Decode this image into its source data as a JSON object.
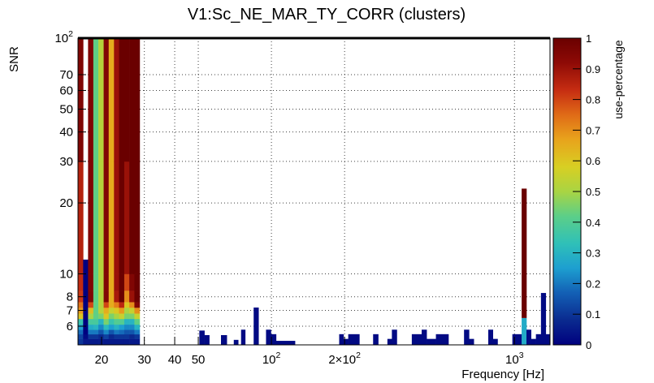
{
  "chart_data": {
    "type": "heatmap",
    "title": "V1:Sc_NE_MAR_TY_CORR (clusters)",
    "xlabel": "Frequency [Hz]",
    "ylabel": "SNR",
    "zlabel": "use-percentage",
    "x_scale": "log",
    "y_scale": "log",
    "xlim": [
      16,
      1400
    ],
    "ylim": [
      5,
      100
    ],
    "zlim": [
      0,
      1
    ],
    "grid": true,
    "x_ticks": [
      {
        "value": 20,
        "label": "20"
      },
      {
        "value": 30,
        "label": "30"
      },
      {
        "value": 40,
        "label": "40"
      },
      {
        "value": 50,
        "label": "50"
      },
      {
        "value": 100,
        "label": "10",
        "sup": "2"
      },
      {
        "value": 200,
        "label": "2×10",
        "sup": "2"
      },
      {
        "value": 1000,
        "label": "10",
        "sup": "3"
      }
    ],
    "y_ticks": [
      {
        "value": 6,
        "label": "6"
      },
      {
        "value": 7,
        "label": "7"
      },
      {
        "value": 8,
        "label": "8"
      },
      {
        "value": 10,
        "label": "10"
      },
      {
        "value": 20,
        "label": "20"
      },
      {
        "value": 30,
        "label": "30"
      },
      {
        "value": 40,
        "label": "40"
      },
      {
        "value": 50,
        "label": "50"
      },
      {
        "value": 60,
        "label": "60"
      },
      {
        "value": 70,
        "label": "70"
      },
      {
        "value": 100,
        "label": "10",
        "sup": "2"
      }
    ],
    "colorbar_ticks": [
      "0",
      "0.1",
      "0.2",
      "0.3",
      "0.4",
      "0.5",
      "0.6",
      "0.7",
      "0.8",
      "0.9",
      "1"
    ],
    "colorscale": [
      "#00007f",
      "#0a2a8f",
      "#1360b5",
      "#1d9fd0",
      "#2fc0b8",
      "#5ccf88",
      "#a9d443",
      "#d8cf23",
      "#e8a31c",
      "#e06b17",
      "#c62d12",
      "#8e0a06",
      "#6a0000"
    ],
    "x_bin_edges": [
      16,
      16.8,
      17.6,
      18.5,
      19.4,
      20.4,
      21.4,
      22.5,
      23.6,
      24.8,
      26.0,
      27.3,
      28.7
    ],
    "low_freq_columns": [
      {
        "snr_top": 100,
        "values": [
          0.1,
          0.12,
          0.18,
          0.25,
          0.35,
          0.6,
          0.68,
          0.74,
          0.82,
          0.84,
          0.86,
          0.95
        ]
      },
      {
        "snr_top": 11.5,
        "values": [
          0.05,
          0.02,
          0.0,
          0.0,
          0.0,
          0.0,
          0.0,
          0.0,
          0.0,
          0.0,
          0.0,
          0.0
        ]
      },
      {
        "snr_top": 100,
        "values": [
          0.05,
          0.1,
          0.2,
          0.28,
          0.38,
          0.5,
          0.62,
          0.8,
          0.95,
          0.95,
          0.95,
          0.95
        ]
      },
      {
        "snr_top": 100,
        "values": [
          0.05,
          0.1,
          0.2,
          0.3,
          0.38,
          0.42,
          0.42,
          0.42,
          0.42,
          0.42,
          0.42,
          0.42
        ]
      },
      {
        "snr_top": 100,
        "values": [
          0.05,
          0.08,
          0.15,
          0.22,
          0.3,
          0.45,
          0.52,
          0.52,
          0.52,
          0.52,
          0.52,
          0.52
        ]
      },
      {
        "snr_top": 100,
        "values": [
          0.05,
          0.12,
          0.22,
          0.32,
          0.45,
          0.6,
          0.65,
          0.8,
          0.95,
          0.95,
          0.95,
          0.95
        ]
      },
      {
        "snr_top": 100,
        "values": [
          0.05,
          0.08,
          0.15,
          0.25,
          0.35,
          0.45,
          0.55,
          0.65,
          0.65,
          0.65,
          0.65,
          0.65
        ]
      },
      {
        "snr_top": 100,
        "values": [
          0.05,
          0.1,
          0.2,
          0.3,
          0.4,
          0.5,
          0.6,
          0.72,
          0.88,
          0.9,
          0.9,
          0.9
        ]
      },
      {
        "snr_top": 100,
        "values": [
          0.05,
          0.1,
          0.18,
          0.25,
          0.4,
          0.55,
          0.68,
          0.85,
          1.0,
          1.0,
          1.0,
          1.0
        ]
      },
      {
        "snr_top": 100,
        "values": [
          0.05,
          0.1,
          0.15,
          0.22,
          0.3,
          0.45,
          0.5,
          0.6,
          0.7,
          0.8,
          0.9,
          1.0
        ]
      },
      {
        "snr_top": 100,
        "values": [
          0.05,
          0.08,
          0.15,
          0.22,
          0.3,
          0.45,
          0.55,
          0.7,
          0.9,
          0.95,
          1.0,
          1.0
        ]
      },
      {
        "snr_top": 100,
        "values": [
          0.05,
          0.1,
          0.2,
          0.3,
          0.42,
          0.55,
          0.7,
          0.95,
          1.0,
          1.0,
          1.0,
          1.0
        ]
      }
    ],
    "low_freq_snr_edges": [
      5,
      5.3,
      5.55,
      5.8,
      6.1,
      6.45,
      6.8,
      7.2,
      7.6,
      8.5,
      10,
      30,
      100
    ],
    "clusters": [
      {
        "f0": 50.5,
        "f1": 53.0,
        "snr_top": 5.75,
        "value": 0.02
      },
      {
        "f0": 53.0,
        "f1": 55.5,
        "snr_top": 5.5,
        "value": 0.02
      },
      {
        "f0": 62.0,
        "f1": 65.5,
        "snr_top": 5.5,
        "value": 0.02
      },
      {
        "f0": 70.0,
        "f1": 73.0,
        "snr_top": 5.25,
        "value": 0.02
      },
      {
        "f0": 75.0,
        "f1": 78.0,
        "snr_top": 5.8,
        "value": 0.02
      },
      {
        "f0": 84.5,
        "f1": 88.5,
        "snr_top": 7.2,
        "value": 0.02
      },
      {
        "f0": 95.0,
        "f1": 99.5,
        "snr_top": 5.8,
        "value": 0.02
      },
      {
        "f0": 99.5,
        "f1": 104.5,
        "snr_top": 5.55,
        "value": 0.02
      },
      {
        "f0": 104.5,
        "f1": 125.0,
        "snr_top": 5.2,
        "value": 0.02
      },
      {
        "f0": 190.0,
        "f1": 198.0,
        "snr_top": 5.55,
        "value": 0.02
      },
      {
        "f0": 198.0,
        "f1": 207.0,
        "snr_top": 5.3,
        "value": 0.02
      },
      {
        "f0": 207.0,
        "f1": 230.0,
        "snr_top": 5.55,
        "value": 0.02
      },
      {
        "f0": 262.0,
        "f1": 275.0,
        "snr_top": 5.55,
        "value": 0.02
      },
      {
        "f0": 300.0,
        "f1": 313.0,
        "snr_top": 5.3,
        "value": 0.02
      },
      {
        "f0": 313.0,
        "f1": 328.0,
        "snr_top": 5.8,
        "value": 0.02
      },
      {
        "f0": 378.0,
        "f1": 415.0,
        "snr_top": 5.55,
        "value": 0.02
      },
      {
        "f0": 415.0,
        "f1": 435.0,
        "snr_top": 5.8,
        "value": 0.02
      },
      {
        "f0": 435.0,
        "f1": 475.0,
        "snr_top": 5.3,
        "value": 0.02
      },
      {
        "f0": 475.0,
        "f1": 535.0,
        "snr_top": 5.55,
        "value": 0.02
      },
      {
        "f0": 620.0,
        "f1": 650.0,
        "snr_top": 5.8,
        "value": 0.02
      },
      {
        "f0": 650.0,
        "f1": 680.0,
        "snr_top": 5.3,
        "value": 0.02
      },
      {
        "f0": 780.0,
        "f1": 815.0,
        "snr_top": 5.8,
        "value": 0.02
      },
      {
        "f0": 815.0,
        "f1": 852.0,
        "snr_top": 5.3,
        "value": 0.02
      },
      {
        "f0": 980.0,
        "f1": 1070.0,
        "snr_top": 5.55,
        "value": 0.02
      },
      {
        "f0": 1070.0,
        "f1": 1120.0,
        "snr_top": 6.5,
        "value": 0.28
      },
      {
        "f0": 1070.0,
        "f1": 1120.0,
        "snr_top": 23.0,
        "value": 1.0,
        "snr_bottom": 6.5
      },
      {
        "f0": 1120.0,
        "f1": 1170.0,
        "snr_top": 5.8,
        "value": 0.02
      },
      {
        "f0": 1170.0,
        "f1": 1225.0,
        "snr_top": 5.3,
        "value": 0.02
      },
      {
        "f0": 1225.0,
        "f1": 1285.0,
        "snr_top": 5.55,
        "value": 0.02
      },
      {
        "f0": 1285.0,
        "f1": 1345.0,
        "snr_top": 8.3,
        "value": 0.02
      },
      {
        "f0": 1345.0,
        "f1": 1400.0,
        "snr_top": 5.55,
        "value": 0.02
      }
    ]
  }
}
